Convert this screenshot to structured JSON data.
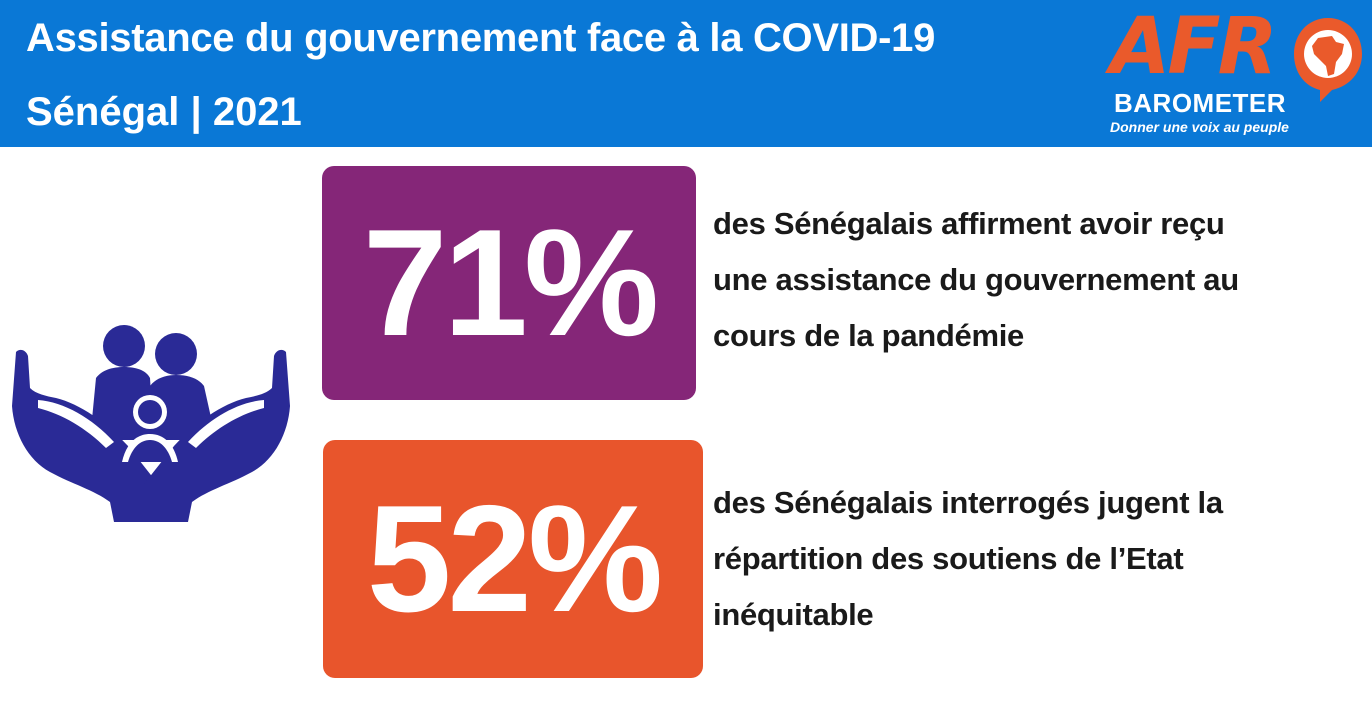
{
  "header": {
    "title": "Assistance du gouvernement face à la COVID-19",
    "subtitle": "Sénégal | 2021",
    "background_color": "#0a78d6"
  },
  "logo": {
    "afro_letters": [
      "A",
      "F",
      "R"
    ],
    "baro": "BAROMETER",
    "tagline": "Donner une voix au peuple",
    "brand_color": "#ea5a2b"
  },
  "illustration": {
    "icon": "family-in-hands-icon",
    "color": "#2a2a96"
  },
  "stats": [
    {
      "value": "71%",
      "color": "#852678",
      "lines": [
        "des Sénégalais affirment avoir reçu",
        "une assistance du gouvernement au",
        "cours de la pandémie"
      ]
    },
    {
      "value": "52%",
      "color": "#e8552c",
      "lines": [
        "des Sénégalais interrogés jugent la",
        "répartition des soutiens de l’Etat",
        "inéquitable"
      ]
    }
  ]
}
